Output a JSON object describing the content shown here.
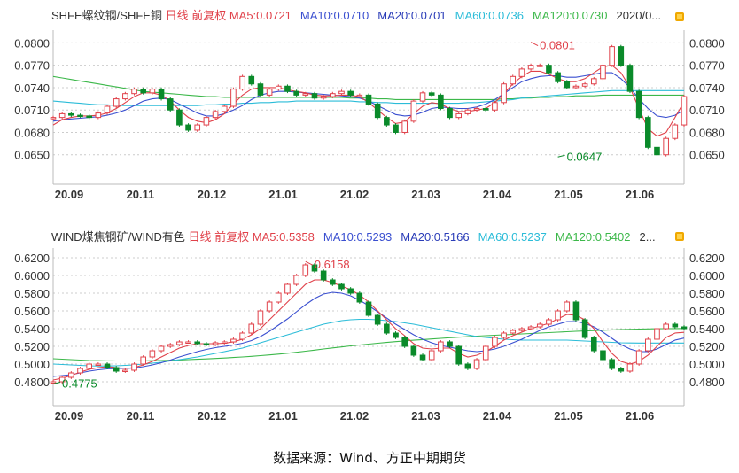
{
  "source_text": "数据来源：Wind、方正中期期货",
  "colors": {
    "up": "#e0414a",
    "down": "#0a8a2a",
    "ma5": "#e0414a",
    "ma10": "#3a4fd0",
    "ma20": "#2b3db8",
    "ma60": "#2bbcd8",
    "ma120": "#3cb84a",
    "grid": "#cccccc"
  },
  "chart_data": [
    {
      "type": "candlestick",
      "title": "SHFE螺纹钢/SHFE铜",
      "period": "日线",
      "adjust": "前复权",
      "legend": [
        {
          "name": "MA5",
          "value": "0.0721"
        },
        {
          "name": "MA10",
          "value": "0.0710"
        },
        {
          "name": "MA20",
          "value": "0.0701"
        },
        {
          "name": "MA60",
          "value": "0.0736"
        },
        {
          "name": "MA120",
          "value": "0.0730"
        },
        {
          "name": "date",
          "value": "2020/0..."
        }
      ],
      "y_ticks": [
        "0.0800",
        "0.0770",
        "0.0740",
        "0.0710",
        "0.0680",
        "0.0650"
      ],
      "ylim": [
        0.062,
        0.081
      ],
      "x_ticks": [
        "20.09",
        "20.11",
        "20.12",
        "21.01",
        "21.02",
        "21.03",
        "21.04",
        "21.05",
        "21.06"
      ],
      "xlim": [
        0,
        70
      ],
      "annotations": [
        {
          "text": "0.0801",
          "x": 53,
          "y": 0.0801
        },
        {
          "text": "0.0647",
          "x": 56,
          "y": 0.0647
        }
      ],
      "close": [
        0.07,
        0.0705,
        0.0703,
        0.0702,
        0.07,
        0.0706,
        0.0715,
        0.0725,
        0.0732,
        0.0738,
        0.0733,
        0.0738,
        0.0725,
        0.071,
        0.069,
        0.0683,
        0.069,
        0.07,
        0.0708,
        0.0715,
        0.0738,
        0.0755,
        0.0745,
        0.073,
        0.0738,
        0.0742,
        0.0735,
        0.073,
        0.0732,
        0.0726,
        0.0728,
        0.0732,
        0.0735,
        0.073,
        0.073,
        0.0718,
        0.07,
        0.069,
        0.068,
        0.0695,
        0.0722,
        0.0733,
        0.073,
        0.0712,
        0.07,
        0.0705,
        0.071,
        0.0712,
        0.071,
        0.072,
        0.0745,
        0.0755,
        0.0765,
        0.077,
        0.077,
        0.076,
        0.0748,
        0.074,
        0.0742,
        0.0745,
        0.0752,
        0.077,
        0.0795,
        0.077,
        0.0735,
        0.07,
        0.066,
        0.065,
        0.0672,
        0.069,
        0.0728
      ],
      "ma5": [
        0.069,
        0.0697,
        0.07,
        0.0702,
        0.0702,
        0.0703,
        0.0706,
        0.0712,
        0.072,
        0.0728,
        0.0733,
        0.0733,
        0.073,
        0.0722,
        0.071,
        0.07,
        0.0695,
        0.0693,
        0.0697,
        0.0705,
        0.0718,
        0.073,
        0.0738,
        0.074,
        0.074,
        0.074,
        0.0737,
        0.0735,
        0.0733,
        0.073,
        0.0729,
        0.0729,
        0.073,
        0.073,
        0.0728,
        0.072,
        0.071,
        0.07,
        0.0692,
        0.0694,
        0.0705,
        0.0715,
        0.072,
        0.0718,
        0.0712,
        0.0708,
        0.0708,
        0.071,
        0.0712,
        0.072,
        0.0732,
        0.0745,
        0.0755,
        0.0762,
        0.0762,
        0.0758,
        0.0752,
        0.0748,
        0.0748,
        0.0752,
        0.076,
        0.0768,
        0.077,
        0.076,
        0.074,
        0.0712,
        0.0685,
        0.0675,
        0.068,
        0.07,
        0.0721
      ],
      "ma10": [
        0.0695,
        0.0697,
        0.0698,
        0.0699,
        0.07,
        0.0701,
        0.0703,
        0.0706,
        0.071,
        0.0716,
        0.0722,
        0.0725,
        0.0726,
        0.0724,
        0.0718,
        0.0712,
        0.0706,
        0.0702,
        0.0702,
        0.0705,
        0.071,
        0.0716,
        0.0724,
        0.073,
        0.0733,
        0.0735,
        0.0735,
        0.0734,
        0.0733,
        0.0732,
        0.0731,
        0.073,
        0.0729,
        0.0728,
        0.0726,
        0.0722,
        0.0716,
        0.071,
        0.0704,
        0.0702,
        0.0703,
        0.0707,
        0.0712,
        0.0714,
        0.0713,
        0.0712,
        0.0712,
        0.0714,
        0.0718,
        0.0724,
        0.0732,
        0.074,
        0.0748,
        0.0752,
        0.0755,
        0.0756,
        0.0756,
        0.0754,
        0.0754,
        0.0756,
        0.0758,
        0.076,
        0.076,
        0.0752,
        0.074,
        0.0725,
        0.0712,
        0.0702,
        0.07,
        0.0703,
        0.071
      ],
      "ma60": [
        0.0722,
        0.0721,
        0.072,
        0.0719,
        0.0718,
        0.0717,
        0.0717,
        0.0716,
        0.0716,
        0.0716,
        0.0716,
        0.0716,
        0.0716,
        0.0716,
        0.0716,
        0.0716,
        0.0716,
        0.0717,
        0.0717,
        0.0718,
        0.0718,
        0.0719,
        0.0719,
        0.072,
        0.072,
        0.0721,
        0.0721,
        0.0722,
        0.0722,
        0.0722,
        0.0722,
        0.0722,
        0.0722,
        0.0722,
        0.0721,
        0.0721,
        0.072,
        0.072,
        0.0719,
        0.0719,
        0.0719,
        0.0719,
        0.0719,
        0.0719,
        0.0719,
        0.0719,
        0.072,
        0.072,
        0.0721,
        0.0722,
        0.0723,
        0.0724,
        0.0726,
        0.0727,
        0.0728,
        0.0729,
        0.073,
        0.0731,
        0.0732,
        0.0733,
        0.0734,
        0.0735,
        0.0736,
        0.0736,
        0.0736,
        0.0736,
        0.0736,
        0.0736,
        0.0736,
        0.0736,
        0.0736
      ],
      "ma120": [
        0.0755,
        0.0753,
        0.0751,
        0.0749,
        0.0747,
        0.0745,
        0.0743,
        0.0741,
        0.0739,
        0.0737,
        0.0735,
        0.0734,
        0.0733,
        0.0732,
        0.0731,
        0.073,
        0.0729,
        0.0728,
        0.0728,
        0.0727,
        0.0727,
        0.0727,
        0.0727,
        0.0727,
        0.0727,
        0.0727,
        0.0727,
        0.0727,
        0.0727,
        0.0727,
        0.0727,
        0.0727,
        0.0727,
        0.0726,
        0.0726,
        0.0726,
        0.0725,
        0.0725,
        0.0724,
        0.0724,
        0.0724,
        0.0724,
        0.0724,
        0.0724,
        0.0724,
        0.0724,
        0.0724,
        0.0724,
        0.0724,
        0.0724,
        0.0725,
        0.0725,
        0.0726,
        0.0726,
        0.0727,
        0.0727,
        0.0728,
        0.0728,
        0.0729,
        0.0729,
        0.0729,
        0.073,
        0.073,
        0.073,
        0.073,
        0.073,
        0.073,
        0.073,
        0.073,
        0.073,
        0.073
      ]
    },
    {
      "type": "candlestick",
      "title": "WIND煤焦钢矿/WIND有色",
      "period": "日线",
      "adjust": "前复权",
      "legend": [
        {
          "name": "MA5",
          "value": "0.5358"
        },
        {
          "name": "MA10",
          "value": "0.5293"
        },
        {
          "name": "MA20",
          "value": "0.5166"
        },
        {
          "name": "MA60",
          "value": "0.5237"
        },
        {
          "name": "MA120",
          "value": "0.5402"
        },
        {
          "name": "date",
          "value": "2..."
        }
      ],
      "y_ticks": [
        "0.6200",
        "0.6000",
        "0.5800",
        "0.5600",
        "0.5400",
        "0.5200",
        "0.5000",
        "0.4800"
      ],
      "ylim": [
        0.465,
        0.625
      ],
      "x_ticks": [
        "20.09",
        "20.11",
        "20.12",
        "21.01",
        "21.02",
        "21.03",
        "21.04",
        "21.05",
        "21.06"
      ],
      "xlim": [
        0,
        70
      ],
      "annotations": [
        {
          "text": "0.6158",
          "x": 28,
          "y": 0.6158
        },
        {
          "text": "0.4775",
          "x": 0,
          "y": 0.4775
        }
      ],
      "close": [
        0.48,
        0.485,
        0.49,
        0.495,
        0.5,
        0.5,
        0.496,
        0.492,
        0.493,
        0.5,
        0.508,
        0.515,
        0.52,
        0.522,
        0.525,
        0.525,
        0.523,
        0.522,
        0.524,
        0.525,
        0.528,
        0.535,
        0.545,
        0.56,
        0.57,
        0.58,
        0.59,
        0.6,
        0.612,
        0.605,
        0.595,
        0.59,
        0.585,
        0.58,
        0.57,
        0.555,
        0.545,
        0.535,
        0.53,
        0.52,
        0.51,
        0.505,
        0.515,
        0.525,
        0.52,
        0.5,
        0.495,
        0.505,
        0.52,
        0.53,
        0.535,
        0.538,
        0.54,
        0.542,
        0.545,
        0.55,
        0.56,
        0.57,
        0.55,
        0.53,
        0.515,
        0.505,
        0.495,
        0.492,
        0.5,
        0.515,
        0.528,
        0.54,
        0.545,
        0.542,
        0.54
      ],
      "ma5": [
        0.482,
        0.484,
        0.487,
        0.491,
        0.494,
        0.496,
        0.497,
        0.496,
        0.495,
        0.496,
        0.499,
        0.503,
        0.508,
        0.513,
        0.518,
        0.521,
        0.523,
        0.523,
        0.523,
        0.5235,
        0.525,
        0.528,
        0.533,
        0.54,
        0.55,
        0.56,
        0.57,
        0.58,
        0.59,
        0.595,
        0.595,
        0.592,
        0.588,
        0.584,
        0.578,
        0.57,
        0.56,
        0.55,
        0.54,
        0.532,
        0.523,
        0.518,
        0.517,
        0.518,
        0.518,
        0.512,
        0.508,
        0.51,
        0.514,
        0.52,
        0.527,
        0.532,
        0.536,
        0.54,
        0.543,
        0.546,
        0.551,
        0.556,
        0.555,
        0.55,
        0.54,
        0.525,
        0.512,
        0.503,
        0.5,
        0.503,
        0.51,
        0.52,
        0.53,
        0.535,
        0.5358
      ],
      "ma10": [
        0.486,
        0.487,
        0.488,
        0.49,
        0.492,
        0.4935,
        0.4945,
        0.495,
        0.495,
        0.4955,
        0.497,
        0.499,
        0.5015,
        0.5045,
        0.508,
        0.511,
        0.514,
        0.5165,
        0.5185,
        0.52,
        0.5215,
        0.5235,
        0.5265,
        0.531,
        0.537,
        0.544,
        0.551,
        0.559,
        0.567,
        0.574,
        0.579,
        0.581,
        0.58,
        0.577,
        0.572,
        0.566,
        0.559,
        0.552,
        0.545,
        0.539,
        0.533,
        0.528,
        0.524,
        0.521,
        0.519,
        0.517,
        0.515,
        0.514,
        0.515,
        0.517,
        0.52,
        0.524,
        0.528,
        0.533,
        0.538,
        0.542,
        0.545,
        0.548,
        0.548,
        0.546,
        0.542,
        0.536,
        0.529,
        0.522,
        0.517,
        0.514,
        0.514,
        0.517,
        0.522,
        0.527,
        0.5293
      ],
      "ma60": [
        0.5,
        0.4995,
        0.499,
        0.4985,
        0.498,
        0.4978,
        0.4978,
        0.498,
        0.4985,
        0.499,
        0.5,
        0.501,
        0.502,
        0.5035,
        0.505,
        0.5065,
        0.508,
        0.51,
        0.512,
        0.514,
        0.516,
        0.518,
        0.521,
        0.524,
        0.527,
        0.53,
        0.533,
        0.536,
        0.539,
        0.542,
        0.545,
        0.547,
        0.549,
        0.55,
        0.5505,
        0.5505,
        0.55,
        0.549,
        0.548,
        0.5465,
        0.545,
        0.543,
        0.541,
        0.539,
        0.537,
        0.535,
        0.533,
        0.531,
        0.53,
        0.529,
        0.528,
        0.5275,
        0.527,
        0.527,
        0.527,
        0.527,
        0.527,
        0.527,
        0.5265,
        0.526,
        0.5255,
        0.525,
        0.5245,
        0.524,
        0.5238,
        0.5237,
        0.5237,
        0.5237,
        0.5237,
        0.5237,
        0.5237
      ],
      "ma120": [
        0.506,
        0.5055,
        0.505,
        0.5045,
        0.504,
        0.5038,
        0.5036,
        0.5035,
        0.5035,
        0.5035,
        0.5036,
        0.5038,
        0.504,
        0.5043,
        0.5046,
        0.505,
        0.5054,
        0.5058,
        0.5063,
        0.5068,
        0.5074,
        0.508,
        0.5087,
        0.5095,
        0.5103,
        0.5112,
        0.5122,
        0.5133,
        0.5145,
        0.5157,
        0.517,
        0.5182,
        0.5193,
        0.5205,
        0.5215,
        0.5225,
        0.5235,
        0.5244,
        0.5253,
        0.5261,
        0.5269,
        0.5276,
        0.5283,
        0.529,
        0.5297,
        0.5303,
        0.5309,
        0.5315,
        0.532,
        0.5325,
        0.533,
        0.5335,
        0.534,
        0.5345,
        0.535,
        0.5355,
        0.536,
        0.5365,
        0.537,
        0.5374,
        0.5378,
        0.5382,
        0.5386,
        0.5389,
        0.5392,
        0.5395,
        0.5397,
        0.5399,
        0.54,
        0.5401,
        0.5402
      ]
    }
  ]
}
